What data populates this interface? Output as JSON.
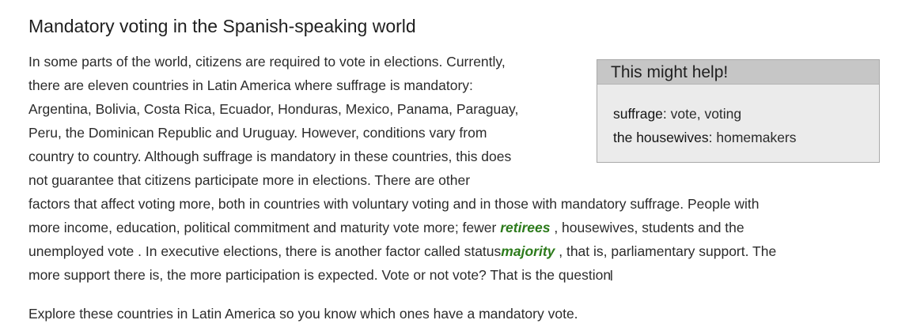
{
  "title": "Mandatory voting in the Spanish-speaking world",
  "help_box": {
    "header": "This might help!",
    "items": [
      {
        "term": "suffrage:",
        "definition": " vote, voting"
      },
      {
        "term": "the housewives:",
        "definition": " homemakers"
      }
    ]
  },
  "paragraph": {
    "lines": [
      "In some parts of the world, citizens are required to vote in elections. Currently,",
      "there are eleven countries in Latin America where suffrage is mandatory:",
      "Argentina, Bolivia, Costa Rica, Ecuador, Honduras, Mexico, Panama, Paraguay,",
      "Peru, the Dominican Republic and Uruguay. However, conditions vary from",
      "country to country. Although suffrage is mandatory in these countries, this does",
      "not guarantee that citizens participate more in elections. There are other",
      "factors that affect voting more, both in countries with voluntary voting and in those with mandatory suffrage. People with"
    ],
    "line8_before": "more income, education, political commitment and maturity vote more; fewer ",
    "line8_highlight": "retirees",
    "line8_after": " , housewives, students and the",
    "line9_before": "unemployed vote . In executive elections, there is another factor called status",
    "line9_highlight": "majority",
    "line9_after": " , that is, parliamentary support. The",
    "line10": "more support there is, the more participation is expected. Vote or not vote? That is the question"
  },
  "explore_text": "Explore these countries in Latin America so you know which ones have a mandatory vote.",
  "colors": {
    "highlight": "#2c7a1b",
    "help_header_bg": "#c6c6c6",
    "help_body_bg": "#ebebeb"
  },
  "icons": {
    "cursor": "text-cursor-icon"
  }
}
